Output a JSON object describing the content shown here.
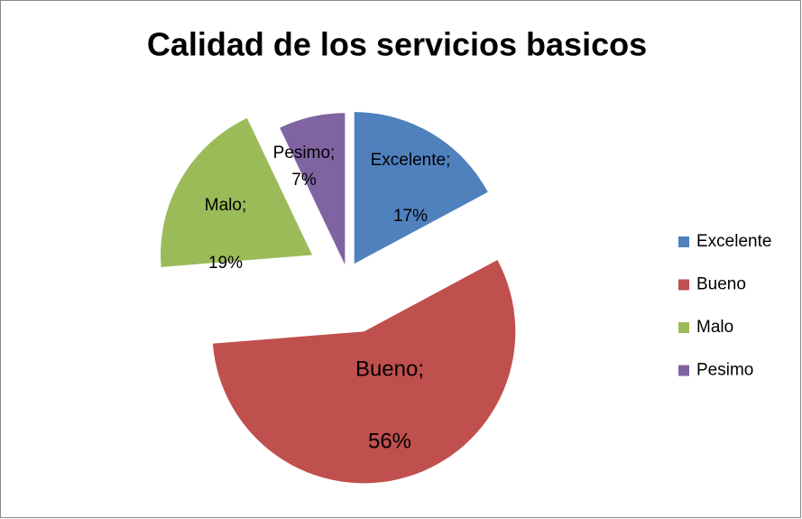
{
  "chart_data": {
    "type": "pie",
    "title": "Calidad de los servicios basicos",
    "categories": [
      "Excelente",
      "Bueno",
      "Malo",
      "Pesimo"
    ],
    "values": [
      17,
      56,
      19,
      7
    ],
    "value_labels": [
      [
        "Excelente;",
        "17%"
      ],
      [
        "Bueno;",
        "56%"
      ],
      [
        "Malo;",
        "19%"
      ],
      [
        "Pesimo;",
        "7%"
      ]
    ],
    "colors": [
      "#4f81bd",
      "#c0504d",
      "#9bbb59",
      "#8064a2"
    ],
    "legend": "right"
  }
}
